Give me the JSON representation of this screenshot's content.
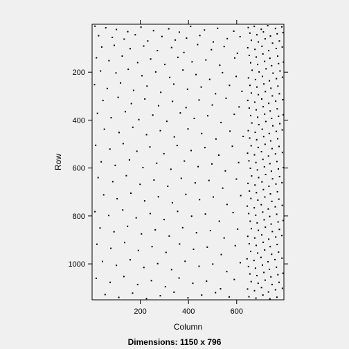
{
  "chart_data": {
    "type": "scatter",
    "title": "",
    "xlabel": "Column",
    "ylabel": "Row",
    "caption": "Dimensions: 1150 x 796",
    "xlim": [
      0,
      796
    ],
    "ylim": [
      1150,
      0
    ],
    "x_ticks": [
      200,
      400,
      600
    ],
    "y_ticks": [
      200,
      400,
      600,
      800,
      1000
    ],
    "grid": false,
    "legend": "none",
    "point_color": "#000000",
    "background": "#f0f0f0",
    "description": "Sparse-matrix non-zero pattern; points roughly uniform over columns 0-640, much denser over columns 640-796.",
    "points": [
      [
        12,
        8
      ],
      [
        57,
        15
      ],
      [
        101,
        22
      ],
      [
        148,
        31
      ],
      [
        203,
        12
      ],
      [
        255,
        27
      ],
      [
        318,
        19
      ],
      [
        362,
        33
      ],
      [
        409,
        9
      ],
      [
        466,
        24
      ],
      [
        521,
        17
      ],
      [
        588,
        29
      ],
      [
        27,
        48
      ],
      [
        84,
        55
      ],
      [
        133,
        62
      ],
      [
        179,
        44
      ],
      [
        231,
        70
      ],
      [
        290,
        51
      ],
      [
        345,
        66
      ],
      [
        392,
        58
      ],
      [
        447,
        47
      ],
      [
        503,
        74
      ],
      [
        561,
        60
      ],
      [
        614,
        52
      ],
      [
        40,
        95
      ],
      [
        92,
        88
      ],
      [
        158,
        102
      ],
      [
        214,
        91
      ],
      [
        271,
        110
      ],
      [
        330,
        97
      ],
      [
        381,
        118
      ],
      [
        438,
        85
      ],
      [
        495,
        106
      ],
      [
        548,
        93
      ],
      [
        603,
        121
      ],
      [
        18,
        140
      ],
      [
        70,
        152
      ],
      [
        125,
        133
      ],
      [
        189,
        160
      ],
      [
        243,
        145
      ],
      [
        302,
        168
      ],
      [
        356,
        138
      ],
      [
        415,
        157
      ],
      [
        472,
        149
      ],
      [
        530,
        171
      ],
      [
        592,
        141
      ],
      [
        35,
        195
      ],
      [
        99,
        203
      ],
      [
        150,
        188
      ],
      [
        207,
        215
      ],
      [
        264,
        199
      ],
      [
        322,
        222
      ],
      [
        377,
        191
      ],
      [
        431,
        210
      ],
      [
        488,
        230
      ],
      [
        541,
        202
      ],
      [
        598,
        218
      ],
      [
        10,
        252
      ],
      [
        63,
        268
      ],
      [
        118,
        245
      ],
      [
        172,
        276
      ],
      [
        228,
        258
      ],
      [
        285,
        284
      ],
      [
        339,
        250
      ],
      [
        396,
        271
      ],
      [
        453,
        262
      ],
      [
        512,
        290
      ],
      [
        570,
        255
      ],
      [
        622,
        280
      ],
      [
        45,
        318
      ],
      [
        108,
        305
      ],
      [
        163,
        331
      ],
      [
        219,
        312
      ],
      [
        276,
        340
      ],
      [
        334,
        322
      ],
      [
        390,
        348
      ],
      [
        444,
        316
      ],
      [
        499,
        337
      ],
      [
        556,
        309
      ],
      [
        610,
        345
      ],
      [
        22,
        372
      ],
      [
        79,
        390
      ],
      [
        138,
        365
      ],
      [
        194,
        398
      ],
      [
        252,
        379
      ],
      [
        310,
        405
      ],
      [
        366,
        370
      ],
      [
        424,
        393
      ],
      [
        480,
        382
      ],
      [
        535,
        410
      ],
      [
        590,
        376
      ],
      [
        51,
        438
      ],
      [
        112,
        452
      ],
      [
        169,
        430
      ],
      [
        226,
        461
      ],
      [
        283,
        444
      ],
      [
        341,
        470
      ],
      [
        398,
        437
      ],
      [
        455,
        456
      ],
      [
        514,
        479
      ],
      [
        572,
        446
      ],
      [
        627,
        468
      ],
      [
        15,
        505
      ],
      [
        74,
        521
      ],
      [
        129,
        498
      ],
      [
        186,
        530
      ],
      [
        240,
        512
      ],
      [
        298,
        540
      ],
      [
        353,
        506
      ],
      [
        411,
        527
      ],
      [
        468,
        515
      ],
      [
        526,
        546
      ],
      [
        582,
        509
      ],
      [
        38,
        574
      ],
      [
        96,
        589
      ],
      [
        155,
        566
      ],
      [
        211,
        598
      ],
      [
        268,
        580
      ],
      [
        327,
        605
      ],
      [
        383,
        571
      ],
      [
        440,
        594
      ],
      [
        497,
        583
      ],
      [
        553,
        612
      ],
      [
        608,
        577
      ],
      [
        25,
        640
      ],
      [
        86,
        657
      ],
      [
        142,
        632
      ],
      [
        199,
        668
      ],
      [
        257,
        650
      ],
      [
        314,
        676
      ],
      [
        370,
        643
      ],
      [
        428,
        662
      ],
      [
        485,
        652
      ],
      [
        542,
        684
      ],
      [
        599,
        646
      ],
      [
        48,
        712
      ],
      [
        104,
        728
      ],
      [
        161,
        705
      ],
      [
        218,
        737
      ],
      [
        275,
        720
      ],
      [
        333,
        745
      ],
      [
        389,
        710
      ],
      [
        446,
        732
      ],
      [
        503,
        721
      ],
      [
        560,
        752
      ],
      [
        617,
        715
      ],
      [
        12,
        782
      ],
      [
        69,
        798
      ],
      [
        127,
        775
      ],
      [
        183,
        808
      ],
      [
        241,
        790
      ],
      [
        299,
        815
      ],
      [
        355,
        781
      ],
      [
        413,
        801
      ],
      [
        470,
        792
      ],
      [
        528,
        822
      ],
      [
        585,
        786
      ],
      [
        33,
        850
      ],
      [
        91,
        866
      ],
      [
        147,
        843
      ],
      [
        205,
        875
      ],
      [
        262,
        858
      ],
      [
        320,
        884
      ],
      [
        376,
        849
      ],
      [
        433,
        870
      ],
      [
        491,
        861
      ],
      [
        548,
        892
      ],
      [
        604,
        855
      ],
      [
        20,
        918
      ],
      [
        78,
        935
      ],
      [
        135,
        911
      ],
      [
        192,
        944
      ],
      [
        249,
        928
      ],
      [
        307,
        952
      ],
      [
        363,
        917
      ],
      [
        421,
        939
      ],
      [
        478,
        930
      ],
      [
        536,
        961
      ],
      [
        594,
        924
      ],
      [
        43,
        990
      ],
      [
        101,
        1006
      ],
      [
        158,
        983
      ],
      [
        215,
        1015
      ],
      [
        272,
        999
      ],
      [
        330,
        1024
      ],
      [
        386,
        989
      ],
      [
        444,
        1010
      ],
      [
        501,
        1001
      ],
      [
        559,
        1032
      ],
      [
        615,
        995
      ],
      [
        17,
        1060
      ],
      [
        75,
        1077
      ],
      [
        132,
        1053
      ],
      [
        189,
        1086
      ],
      [
        246,
        1070
      ],
      [
        304,
        1095
      ],
      [
        361,
        1059
      ],
      [
        418,
        1081
      ],
      [
        475,
        1072
      ],
      [
        533,
        1104
      ],
      [
        590,
        1065
      ],
      [
        54,
        1128
      ],
      [
        111,
        1140
      ],
      [
        168,
        1122
      ],
      [
        226,
        1145
      ],
      [
        283,
        1133
      ],
      [
        340,
        1118
      ],
      [
        398,
        1142
      ],
      [
        455,
        1130
      ],
      [
        512,
        1120
      ],
      [
        569,
        1138
      ],
      [
        648,
        14
      ],
      [
        673,
        9
      ],
      [
        702,
        21
      ],
      [
        729,
        6
      ],
      [
        761,
        18
      ],
      [
        787,
        11
      ],
      [
        655,
        37
      ],
      [
        684,
        44
      ],
      [
        711,
        32
      ],
      [
        740,
        49
      ],
      [
        768,
        40
      ],
      [
        792,
        35
      ],
      [
        661,
        67
      ],
      [
        690,
        74
      ],
      [
        718,
        61
      ],
      [
        749,
        79
      ],
      [
        777,
        70
      ],
      [
        646,
        98
      ],
      [
        676,
        105
      ],
      [
        705,
        92
      ],
      [
        733,
        110
      ],
      [
        764,
        101
      ],
      [
        789,
        95
      ],
      [
        652,
        130
      ],
      [
        681,
        137
      ],
      [
        709,
        124
      ],
      [
        738,
        142
      ],
      [
        770,
        133
      ],
      [
        658,
        161
      ],
      [
        687,
        168
      ],
      [
        716,
        155
      ],
      [
        745,
        173
      ],
      [
        774,
        164
      ],
      [
        794,
        158
      ],
      [
        664,
        192
      ],
      [
        693,
        199
      ],
      [
        722,
        186
      ],
      [
        751,
        204
      ],
      [
        780,
        195
      ],
      [
        649,
        224
      ],
      [
        678,
        231
      ],
      [
        707,
        218
      ],
      [
        736,
        236
      ],
      [
        765,
        227
      ],
      [
        790,
        221
      ],
      [
        655,
        255
      ],
      [
        684,
        262
      ],
      [
        713,
        249
      ],
      [
        742,
        267
      ],
      [
        771,
        258
      ],
      [
        661,
        287
      ],
      [
        690,
        294
      ],
      [
        719,
        281
      ],
      [
        748,
        299
      ],
      [
        777,
        290
      ],
      [
        646,
        318
      ],
      [
        675,
        325
      ],
      [
        704,
        312
      ],
      [
        733,
        330
      ],
      [
        762,
        321
      ],
      [
        791,
        315
      ],
      [
        652,
        350
      ],
      [
        681,
        357
      ],
      [
        710,
        344
      ],
      [
        739,
        362
      ],
      [
        768,
        353
      ],
      [
        658,
        381
      ],
      [
        687,
        388
      ],
      [
        716,
        375
      ],
      [
        745,
        393
      ],
      [
        774,
        384
      ],
      [
        793,
        378
      ],
      [
        663,
        412
      ],
      [
        692,
        419
      ],
      [
        721,
        406
      ],
      [
        750,
        424
      ],
      [
        779,
        415
      ],
      [
        648,
        444
      ],
      [
        677,
        451
      ],
      [
        706,
        438
      ],
      [
        735,
        456
      ],
      [
        764,
        447
      ],
      [
        789,
        441
      ],
      [
        654,
        475
      ],
      [
        683,
        482
      ],
      [
        712,
        469
      ],
      [
        741,
        487
      ],
      [
        770,
        478
      ],
      [
        660,
        507
      ],
      [
        689,
        514
      ],
      [
        718,
        501
      ],
      [
        747,
        519
      ],
      [
        776,
        510
      ],
      [
        645,
        538
      ],
      [
        674,
        545
      ],
      [
        703,
        532
      ],
      [
        732,
        550
      ],
      [
        761,
        541
      ],
      [
        790,
        535
      ],
      [
        651,
        570
      ],
      [
        680,
        577
      ],
      [
        709,
        564
      ],
      [
        738,
        582
      ],
      [
        767,
        573
      ],
      [
        657,
        601
      ],
      [
        686,
        608
      ],
      [
        715,
        595
      ],
      [
        744,
        613
      ],
      [
        773,
        604
      ],
      [
        794,
        598
      ],
      [
        662,
        633
      ],
      [
        691,
        640
      ],
      [
        720,
        627
      ],
      [
        749,
        645
      ],
      [
        778,
        636
      ],
      [
        647,
        664
      ],
      [
        676,
        671
      ],
      [
        705,
        658
      ],
      [
        734,
        676
      ],
      [
        763,
        667
      ],
      [
        788,
        661
      ],
      [
        653,
        696
      ],
      [
        682,
        703
      ],
      [
        711,
        690
      ],
      [
        740,
        708
      ],
      [
        769,
        699
      ],
      [
        659,
        727
      ],
      [
        688,
        734
      ],
      [
        717,
        721
      ],
      [
        746,
        739
      ],
      [
        775,
        730
      ],
      [
        644,
        759
      ],
      [
        673,
        766
      ],
      [
        702,
        753
      ],
      [
        731,
        771
      ],
      [
        760,
        762
      ],
      [
        789,
        756
      ],
      [
        650,
        790
      ],
      [
        679,
        797
      ],
      [
        708,
        784
      ],
      [
        737,
        802
      ],
      [
        766,
        793
      ],
      [
        656,
        822
      ],
      [
        685,
        829
      ],
      [
        714,
        816
      ],
      [
        743,
        834
      ],
      [
        772,
        825
      ],
      [
        793,
        819
      ],
      [
        661,
        853
      ],
      [
        690,
        860
      ],
      [
        719,
        847
      ],
      [
        748,
        865
      ],
      [
        777,
        856
      ],
      [
        646,
        885
      ],
      [
        675,
        892
      ],
      [
        704,
        879
      ],
      [
        733,
        897
      ],
      [
        762,
        888
      ],
      [
        787,
        882
      ],
      [
        652,
        916
      ],
      [
        681,
        923
      ],
      [
        710,
        910
      ],
      [
        739,
        928
      ],
      [
        768,
        919
      ],
      [
        658,
        948
      ],
      [
        687,
        955
      ],
      [
        716,
        942
      ],
      [
        745,
        960
      ],
      [
        774,
        951
      ],
      [
        643,
        979
      ],
      [
        672,
        986
      ],
      [
        701,
        973
      ],
      [
        730,
        991
      ],
      [
        759,
        982
      ],
      [
        788,
        976
      ],
      [
        649,
        1011
      ],
      [
        678,
        1018
      ],
      [
        707,
        1005
      ],
      [
        736,
        1023
      ],
      [
        765,
        1014
      ],
      [
        655,
        1042
      ],
      [
        684,
        1049
      ],
      [
        713,
        1036
      ],
      [
        742,
        1054
      ],
      [
        771,
        1045
      ],
      [
        792,
        1039
      ],
      [
        660,
        1074
      ],
      [
        689,
        1081
      ],
      [
        718,
        1068
      ],
      [
        747,
        1086
      ],
      [
        776,
        1077
      ],
      [
        645,
        1105
      ],
      [
        674,
        1112
      ],
      [
        703,
        1099
      ],
      [
        732,
        1117
      ],
      [
        761,
        1108
      ],
      [
        790,
        1102
      ],
      [
        651,
        1137
      ],
      [
        680,
        1143
      ],
      [
        709,
        1130
      ],
      [
        738,
        1146
      ],
      [
        767,
        1139
      ]
    ]
  }
}
